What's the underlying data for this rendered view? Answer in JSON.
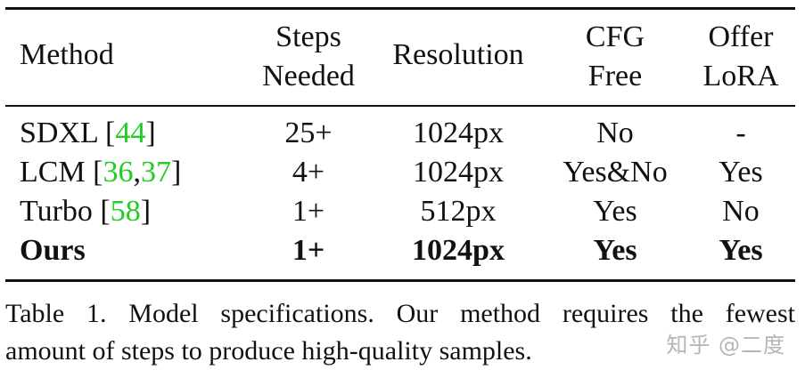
{
  "table": {
    "headers": {
      "method": "Method",
      "steps_line1": "Steps",
      "steps_line2": "Needed",
      "resolution": "Resolution",
      "cfg_line1": "CFG",
      "cfg_line2": "Free",
      "lora_line1": "Offer",
      "lora_line2": "LoRA"
    },
    "rows": [
      {
        "method": "SDXL [",
        "cite1": "44",
        "cite_sep": "",
        "cite2": "",
        "method_close": "]",
        "steps": "25+",
        "resolution": "1024px",
        "cfg_free": "No",
        "offer_lora": "-"
      },
      {
        "method": "LCM [",
        "cite1": "36",
        "cite_sep": ",",
        "cite2": "37",
        "method_close": "]",
        "steps": "4+",
        "resolution": "1024px",
        "cfg_free": "Yes&No",
        "offer_lora": "Yes"
      },
      {
        "method": "Turbo [",
        "cite1": "58",
        "cite_sep": "",
        "cite2": "",
        "method_close": "]",
        "steps": "1+",
        "resolution": "512px",
        "cfg_free": "Yes",
        "offer_lora": "No"
      },
      {
        "method": "Ours",
        "steps": "1+",
        "resolution": "1024px",
        "cfg_free": "Yes",
        "offer_lora": "Yes"
      }
    ],
    "colors": {
      "citation": "#22cc22"
    }
  },
  "caption": {
    "line1": "Table 1.  Model specifications.  Our method requires the fewest",
    "line2": "amount of steps to produce high-quality samples."
  },
  "watermark": "知乎 @二度"
}
